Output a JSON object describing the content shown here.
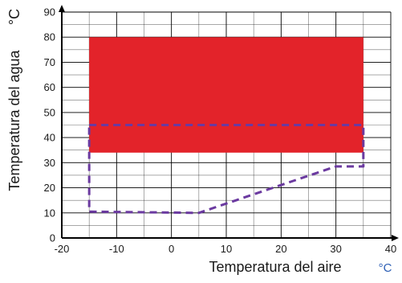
{
  "chart_data": {
    "type": "area",
    "xlabel": "Temperatura del aire",
    "ylabel": "Temperatura del agua",
    "x_unit": "°C",
    "y_unit": "°C",
    "xlim": [
      -20,
      40
    ],
    "ylim": [
      0,
      90
    ],
    "x_ticks": [
      -20,
      -10,
      0,
      10,
      20,
      30,
      40
    ],
    "y_ticks": [
      0,
      10,
      20,
      30,
      40,
      50,
      60,
      70,
      80,
      90
    ],
    "grid": true,
    "minor_grid": true,
    "series": [
      {
        "style": "filled-rect",
        "color": "#e3232a",
        "x": [
          -15,
          35
        ],
        "y": [
          34,
          80
        ]
      },
      {
        "style": "dashed-outline",
        "color": "#6b3aa0",
        "points": [
          [
            -15,
            45
          ],
          [
            35,
            45
          ],
          [
            35,
            28.5
          ],
          [
            30,
            28.5
          ],
          [
            5,
            10
          ],
          [
            -15,
            10.5
          ],
          [
            -15,
            45
          ]
        ]
      }
    ],
    "colors": {
      "axis": "#000000",
      "grid": "#000000",
      "unit": "#2d5fb5"
    }
  }
}
